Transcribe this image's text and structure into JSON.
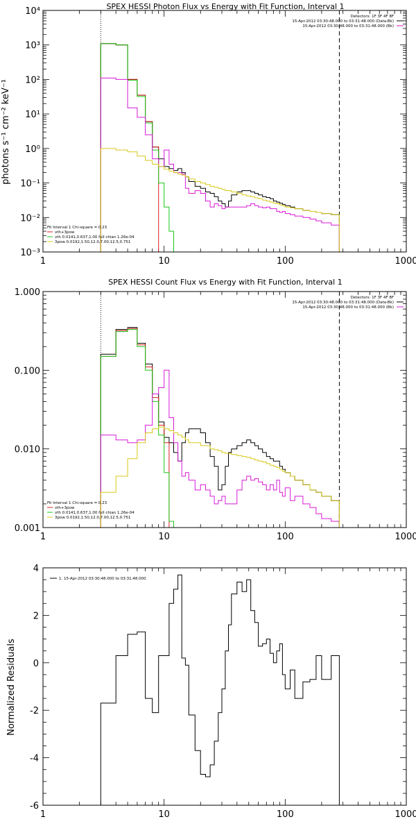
{
  "colors": {
    "black": "#000000",
    "red": "#d82020",
    "green": "#18c818",
    "yellow": "#d8c818",
    "magenta": "#d818d8"
  },
  "chart_data": [
    {
      "type": "line",
      "title": "SPEX HESSI Photon Flux vs Energy with Fit Function, Interval 1",
      "xlabel": "",
      "ylabel": "photons s⁻¹ cm⁻² keV⁻¹",
      "x_scale": "log",
      "y_scale": "log",
      "xlim": [
        1,
        1000
      ],
      "ylim": [
        0.001,
        10000
      ],
      "x_tick_labels": [
        "1",
        "10",
        "100",
        "1000"
      ],
      "y_tick_labels": [
        "10⁻³",
        "10⁻²",
        "10⁻¹",
        "10⁰",
        "10¹",
        "10²",
        "10³",
        "10⁴"
      ],
      "vlines": [
        {
          "x": 3,
          "style": "dotted"
        },
        {
          "x": 280,
          "style": "dashed"
        }
      ],
      "info_top": [
        "Detectors: 1F 3F 4F 8F",
        "15-Apr-2012 03:30:48.000 to 03:31:48.000 (Data-Bk)",
        "15-Apr-2012 03:30:48.000 to 03:31:48.000 (Bk)"
      ],
      "fit_legend": [
        "Fit Interval 1   Chi-square = 0.23",
        "vth+3pow",
        "vth 0.0141,0.637,1.00  full chian 1.26e-04",
        "3pow 0.0192,1.50,12.0,7.00,12.5,0.751"
      ],
      "series": [
        {
          "color": "#000000",
          "edges": [
            3,
            4,
            5,
            6,
            7,
            8,
            9,
            10,
            11,
            12,
            13,
            14,
            15,
            16,
            18,
            20,
            22,
            24,
            26,
            28,
            30,
            32,
            34,
            36,
            40,
            44,
            48,
            52,
            56,
            60,
            65,
            70,
            75,
            80,
            85,
            90,
            95,
            100,
            110,
            120,
            140,
            160,
            180,
            200,
            240,
            280
          ],
          "values": [
            1100,
            1000,
            100,
            35,
            6,
            1.1,
            0.5,
            0.3,
            0.26,
            0.23,
            0.26,
            0.2,
            0.15,
            0.11,
            0.08,
            0.07,
            0.055,
            0.05,
            0.04,
            0.03,
            0.025,
            0.02,
            0.03,
            0.045,
            0.055,
            0.06,
            0.06,
            0.055,
            0.05,
            0.045,
            0.04,
            0.038,
            0.035,
            0.03,
            0.028,
            0.026,
            0.024,
            0.022,
            0.02,
            0.018,
            0.016,
            0.015,
            0.014,
            0.013,
            0.012
          ]
        },
        {
          "color": "#d82020",
          "edges": [
            3,
            4,
            5,
            6,
            7,
            8,
            9
          ],
          "values": [
            1100,
            1000,
            100,
            35,
            6,
            1.1
          ]
        },
        {
          "color": "#18c818",
          "edges": [
            3,
            4,
            5,
            6,
            7,
            8,
            9,
            10,
            11,
            12
          ],
          "values": [
            1100,
            1000,
            95,
            32,
            5.5,
            0.9,
            0.1,
            0.02,
            0.004
          ]
        },
        {
          "color": "#d818d8",
          "edges": [
            3,
            4,
            5,
            6,
            7,
            8,
            9,
            10,
            11,
            12,
            13,
            14,
            15,
            16,
            18,
            20,
            22,
            24,
            26,
            28,
            30,
            32,
            36,
            40,
            44,
            48,
            52,
            56,
            60,
            65,
            70,
            75,
            80,
            85,
            90,
            95,
            100,
            110,
            120,
            140,
            160,
            180,
            200,
            240,
            280
          ],
          "values": [
            110,
            100,
            15,
            8,
            2.5,
            0.5,
            0.3,
            0.9,
            0.35,
            0.2,
            0.2,
            0.18,
            0.07,
            0.05,
            0.06,
            0.05,
            0.03,
            0.02,
            0.025,
            0.022,
            0.018,
            0.02,
            0.02,
            0.02,
            0.02,
            0.022,
            0.025,
            0.022,
            0.02,
            0.019,
            0.02,
            0.018,
            0.018,
            0.015,
            0.014,
            0.015,
            0.013,
            0.012,
            0.011,
            0.01,
            0.009,
            0.008,
            0.007,
            0.006
          ]
        },
        {
          "color": "#d8c818",
          "edges": [
            3,
            4,
            5,
            6,
            7,
            8,
            9,
            10,
            11,
            12,
            13,
            14,
            15,
            16,
            18,
            20,
            22,
            24,
            26,
            28,
            30,
            32,
            36,
            40,
            44,
            48,
            52,
            56,
            60,
            65,
            70,
            75,
            80,
            85,
            90,
            95,
            100,
            110,
            120,
            140,
            160,
            180,
            200,
            240,
            280
          ],
          "values": [
            1,
            0.9,
            0.8,
            0.6,
            0.45,
            0.35,
            0.3,
            0.25,
            0.22,
            0.2,
            0.18,
            0.17,
            0.15,
            0.13,
            0.11,
            0.1,
            0.09,
            0.08,
            0.075,
            0.07,
            0.065,
            0.06,
            0.055,
            0.05,
            0.045,
            0.042,
            0.04,
            0.037,
            0.035,
            0.032,
            0.03,
            0.028,
            0.026,
            0.025,
            0.023,
            0.022,
            0.02,
            0.019,
            0.018,
            0.016,
            0.015,
            0.014,
            0.013,
            0.012
          ]
        }
      ]
    },
    {
      "type": "line",
      "title": "SPEX HESSI Count Flux vs Energy with Fit Function, Interval 1",
      "xlabel": "",
      "ylabel": "",
      "x_scale": "log",
      "y_scale": "log",
      "xlim": [
        1,
        1000
      ],
      "ylim": [
        0.001,
        1
      ],
      "x_tick_labels": [
        "1",
        "10",
        "100",
        "1000"
      ],
      "y_tick_labels": [
        "0.001",
        "0.010",
        "0.100",
        "1.000"
      ],
      "vlines": [
        {
          "x": 3,
          "style": "dotted"
        },
        {
          "x": 280,
          "style": "dashed"
        }
      ],
      "info_top": [
        "Detectors: 1F 3F 4F 8F",
        "15-Apr-2012 03:30:48.000 to 03:31:48.000 (Data-Bk)",
        "15-Apr-2012 03:30:48.000 to 03:31:48.000 (Bk)"
      ],
      "fit_legend": [
        "Fit Interval 1   Chi-square = 0.23",
        "vth+3pow",
        "vth 0.0141,0.637,1.00  full chian 1.26e-04",
        "3pow 0.0192,1.50,12.0,7.00,12.5,0.751"
      ],
      "series": [
        {
          "color": "#000000",
          "edges": [
            3,
            4,
            5,
            6,
            7,
            8,
            9,
            10,
            11,
            12,
            13,
            14,
            15,
            16,
            18,
            20,
            22,
            24,
            26,
            28,
            30,
            32,
            34,
            36,
            40,
            44,
            48,
            52,
            56,
            60,
            65,
            70,
            75,
            80,
            85,
            90,
            95,
            100,
            110,
            120,
            140,
            160,
            180,
            200,
            240,
            280
          ],
          "values": [
            0.16,
            0.33,
            0.35,
            0.22,
            0.12,
            0.05,
            0.022,
            0.014,
            0.012,
            0.009,
            0.007,
            0.012,
            0.016,
            0.018,
            0.018,
            0.016,
            0.012,
            0.008,
            0.006,
            0.003,
            0.0035,
            0.006,
            0.009,
            0.01,
            0.011,
            0.012,
            0.013,
            0.012,
            0.011,
            0.01,
            0.009,
            0.008,
            0.0075,
            0.007,
            0.007,
            0.006,
            0.0055,
            0.005,
            0.0045,
            0.004,
            0.0035,
            0.003,
            0.0028,
            0.0025,
            0.0022
          ]
        },
        {
          "color": "#d82020",
          "edges": [
            3,
            4,
            5,
            6,
            7,
            8,
            9,
            10,
            11
          ],
          "values": [
            0.15,
            0.32,
            0.34,
            0.21,
            0.11,
            0.045,
            0.02,
            0.012
          ]
        },
        {
          "color": "#18c818",
          "edges": [
            3,
            4,
            5,
            6,
            7,
            8,
            9,
            10,
            11,
            12
          ],
          "values": [
            0.15,
            0.31,
            0.33,
            0.2,
            0.1,
            0.04,
            0.015,
            0.005,
            0.0012
          ]
        },
        {
          "color": "#d818d8",
          "edges": [
            3,
            4,
            5,
            6,
            7,
            8,
            9,
            10,
            11,
            12,
            13,
            14,
            15,
            16,
            18,
            20,
            22,
            24,
            26,
            28,
            30,
            32,
            36,
            40,
            44,
            48,
            52,
            56,
            60,
            65,
            70,
            75,
            80,
            85,
            90,
            95,
            100,
            110,
            120,
            140,
            160,
            180,
            200,
            240,
            280
          ],
          "values": [
            0.015,
            0.013,
            0.012,
            0.013,
            0.02,
            0.05,
            0.06,
            0.1,
            0.025,
            0.012,
            0.007,
            0.0045,
            0.005,
            0.004,
            0.003,
            0.0035,
            0.003,
            0.0025,
            0.002,
            0.0022,
            0.0025,
            0.002,
            0.002,
            0.003,
            0.004,
            0.0045,
            0.004,
            0.0042,
            0.0038,
            0.0035,
            0.003,
            0.0035,
            0.003,
            0.004,
            0.0028,
            0.0025,
            0.0032,
            0.0022,
            0.0025,
            0.002,
            0.0018,
            0.0015,
            0.0013,
            0.0012
          ]
        },
        {
          "color": "#d8c818",
          "edges": [
            3,
            4,
            5,
            6,
            7,
            8,
            9,
            10,
            11,
            12,
            13,
            14,
            15,
            16,
            18,
            20,
            22,
            24,
            26,
            28,
            30,
            32,
            36,
            40,
            44,
            48,
            52,
            56,
            60,
            65,
            70,
            75,
            80,
            85,
            90,
            95,
            100,
            110,
            120,
            140,
            160,
            180,
            200,
            240,
            280
          ],
          "values": [
            0.0028,
            0.0045,
            0.0075,
            0.012,
            0.016,
            0.018,
            0.019,
            0.018,
            0.017,
            0.016,
            0.015,
            0.014,
            0.013,
            0.012,
            0.012,
            0.011,
            0.011,
            0.01,
            0.0098,
            0.0095,
            0.009,
            0.0088,
            0.0085,
            0.0082,
            0.008,
            0.0078,
            0.0075,
            0.0072,
            0.007,
            0.0068,
            0.0065,
            0.0062,
            0.006,
            0.0058,
            0.0055,
            0.0052,
            0.005,
            0.0045,
            0.004,
            0.0035,
            0.003,
            0.0028,
            0.0025,
            0.0022
          ]
        }
      ]
    },
    {
      "type": "line",
      "title": "",
      "xlabel": "",
      "ylabel": "Normalized Residuals",
      "x_scale": "log",
      "y_scale": "linear",
      "xlim": [
        1,
        1000
      ],
      "ylim": [
        -6,
        4
      ],
      "x_tick_labels": [
        "1",
        "10",
        "100",
        "1000"
      ],
      "y_tick_values": [
        -6,
        -4,
        -2,
        0,
        2,
        4
      ],
      "legend": [
        "1. 15-Apr-2012 03:30:48.000 to 03:31:48.000"
      ],
      "series": [
        {
          "color": "#000000",
          "edges": [
            3,
            4,
            5,
            6,
            7,
            8,
            9,
            10,
            11,
            12,
            13,
            14,
            15,
            16,
            18,
            20,
            22,
            24,
            26,
            28,
            30,
            32,
            34,
            36,
            40,
            44,
            48,
            52,
            56,
            60,
            65,
            70,
            75,
            80,
            85,
            90,
            95,
            100,
            110,
            120,
            140,
            160,
            180,
            200,
            240,
            280
          ],
          "values": [
            -1.7,
            0.3,
            1.2,
            1.3,
            -1.5,
            -2.1,
            0.3,
            0.3,
            2.5,
            3.1,
            3.7,
            0.2,
            -0.1,
            -2.2,
            -3.7,
            -4.7,
            -4.8,
            -4.3,
            -3.3,
            -2.1,
            -1.1,
            0.5,
            1.6,
            2.9,
            3.4,
            3.0,
            3.5,
            2.2,
            1.7,
            0.7,
            0.8,
            1.0,
            0.4,
            0.0,
            0.5,
            0.8,
            -0.5,
            -1.1,
            -0.3,
            -1.5,
            -0.8,
            -0.7,
            0.3,
            -0.7,
            0.3
          ]
        }
      ]
    }
  ]
}
